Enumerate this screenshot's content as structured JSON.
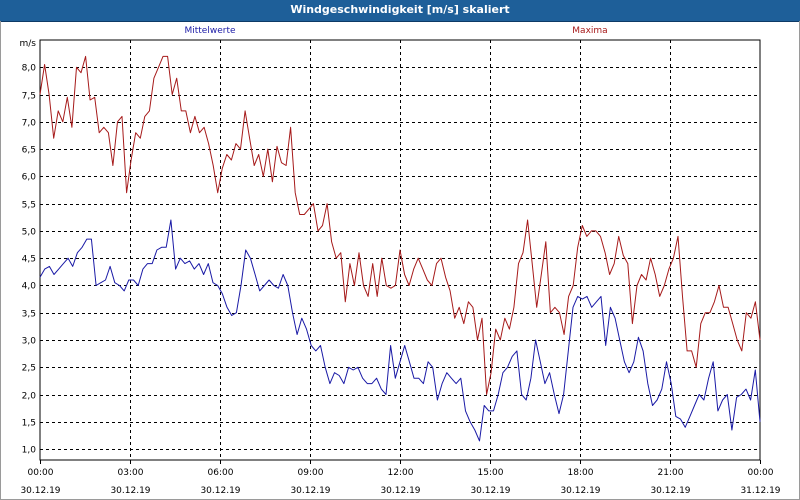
{
  "window": {
    "title": "Windgeschwindigkeit [m/s] skaliert"
  },
  "chart_data": {
    "type": "line",
    "title": "Windgeschwindigkeit [m/s] skaliert",
    "ylabel": "m/s",
    "xlabel": "",
    "ylim": [
      0.8,
      8.5
    ],
    "yticks": [
      "1,0",
      "1,5",
      "2,0",
      "2,5",
      "3,0",
      "3,5",
      "4,0",
      "4,5",
      "5,0",
      "5,5",
      "6,0",
      "6,5",
      "7,0",
      "7,5",
      "8,0"
    ],
    "ytick_values": [
      1.0,
      1.5,
      2.0,
      2.5,
      3.0,
      3.5,
      4.0,
      4.5,
      5.0,
      5.5,
      6.0,
      6.5,
      7.0,
      7.5,
      8.0
    ],
    "x_range_hours": [
      0,
      24
    ],
    "xticks": [
      {
        "time": "00:00",
        "date": "30.12.19"
      },
      {
        "time": "03:00",
        "date": "30.12.19"
      },
      {
        "time": "06:00",
        "date": "30.12.19"
      },
      {
        "time": "09:00",
        "date": "30.12.19"
      },
      {
        "time": "12:00",
        "date": "30.12.19"
      },
      {
        "time": "15:00",
        "date": "30.12.19"
      },
      {
        "time": "18:00",
        "date": "30.12.19"
      },
      {
        "time": "21:00",
        "date": "30.12.19"
      },
      {
        "time": "00:00",
        "date": "31.12.19"
      }
    ],
    "grid": true,
    "legend_placement": "top",
    "series": [
      {
        "name": "Mittelwerte",
        "color": "#1a1aa6",
        "values": [
          4.15,
          4.3,
          4.35,
          4.2,
          4.3,
          4.4,
          4.5,
          4.35,
          4.6,
          4.7,
          4.85,
          4.85,
          4.0,
          4.05,
          4.1,
          4.35,
          4.05,
          4.0,
          3.9,
          4.1,
          4.1,
          4.0,
          4.3,
          4.4,
          4.4,
          4.65,
          4.7,
          4.7,
          5.2,
          4.3,
          4.5,
          4.4,
          4.45,
          4.3,
          4.4,
          4.2,
          4.4,
          4.05,
          4.0,
          3.85,
          3.6,
          3.45,
          3.5,
          4.0,
          4.65,
          4.5,
          4.2,
          3.9,
          4.0,
          4.1,
          4.0,
          3.95,
          4.2,
          4.0,
          3.5,
          3.1,
          3.4,
          3.2,
          2.9,
          2.8,
          2.9,
          2.5,
          2.2,
          2.4,
          2.35,
          2.2,
          2.5,
          2.45,
          2.5,
          2.3,
          2.2,
          2.2,
          2.3,
          2.1,
          2.0,
          2.9,
          2.3,
          2.6,
          2.9,
          2.6,
          2.3,
          2.3,
          2.2,
          2.6,
          2.5,
          1.9,
          2.2,
          2.4,
          2.3,
          2.2,
          2.3,
          1.7,
          1.5,
          1.35,
          1.15,
          1.8,
          1.7,
          1.7,
          2.0,
          2.4,
          2.5,
          2.7,
          2.8,
          2.0,
          1.9,
          2.3,
          3.0,
          2.6,
          2.2,
          2.4,
          2.0,
          1.65,
          2.0,
          2.8,
          3.6,
          3.8,
          3.75,
          3.8,
          3.6,
          3.7,
          3.8,
          2.9,
          3.6,
          3.4,
          3.0,
          2.6,
          2.4,
          2.6,
          3.05,
          2.8,
          2.2,
          1.8,
          1.9,
          2.1,
          2.6,
          2.2,
          1.6,
          1.55,
          1.4,
          1.6,
          1.8,
          2.0,
          1.9,
          2.3,
          2.6,
          1.7,
          1.9,
          2.0,
          1.35,
          1.95,
          2.0,
          2.1,
          1.9,
          2.45,
          1.5
        ]
      },
      {
        "name": "Maxima",
        "color": "#a61a1a",
        "values": [
          7.5,
          8.05,
          7.5,
          6.7,
          7.2,
          7.0,
          7.45,
          6.9,
          8.0,
          7.9,
          8.2,
          7.4,
          7.45,
          6.8,
          6.9,
          6.8,
          6.2,
          7.0,
          7.1,
          5.7,
          6.3,
          6.8,
          6.7,
          7.1,
          7.2,
          7.8,
          8.0,
          8.2,
          8.2,
          7.5,
          7.8,
          7.2,
          7.2,
          6.8,
          7.1,
          6.8,
          6.9,
          6.6,
          6.2,
          5.7,
          6.15,
          6.4,
          6.3,
          6.6,
          6.5,
          7.2,
          6.7,
          6.2,
          6.4,
          6.0,
          6.5,
          5.9,
          6.55,
          6.25,
          6.2,
          6.9,
          5.7,
          5.3,
          5.3,
          5.4,
          5.5,
          5.0,
          5.1,
          5.5,
          4.8,
          4.5,
          4.6,
          3.7,
          4.4,
          4.0,
          4.6,
          4.0,
          3.8,
          4.4,
          3.8,
          4.5,
          4.0,
          3.95,
          4.0,
          4.65,
          4.2,
          4.0,
          4.3,
          4.5,
          4.3,
          4.1,
          4.0,
          4.4,
          4.5,
          4.15,
          3.9,
          3.4,
          3.6,
          3.3,
          3.7,
          3.6,
          3.0,
          3.4,
          2.0,
          2.4,
          3.2,
          3.0,
          3.4,
          3.2,
          3.6,
          4.4,
          4.6,
          5.2,
          4.4,
          3.6,
          4.2,
          4.8,
          3.5,
          3.6,
          3.5,
          3.1,
          3.8,
          4.0,
          4.7,
          5.1,
          4.9,
          5.0,
          5.0,
          4.9,
          4.6,
          4.2,
          4.4,
          4.9,
          4.55,
          4.4,
          3.3,
          4.0,
          4.2,
          4.1,
          4.5,
          4.2,
          3.8,
          4.0,
          4.3,
          4.5,
          4.9,
          3.8,
          2.8,
          2.8,
          2.5,
          3.3,
          3.5,
          3.5,
          3.7,
          4.0,
          3.6,
          3.6,
          3.3,
          3.0,
          2.8,
          3.5,
          3.4,
          3.7,
          3.0
        ]
      }
    ]
  }
}
